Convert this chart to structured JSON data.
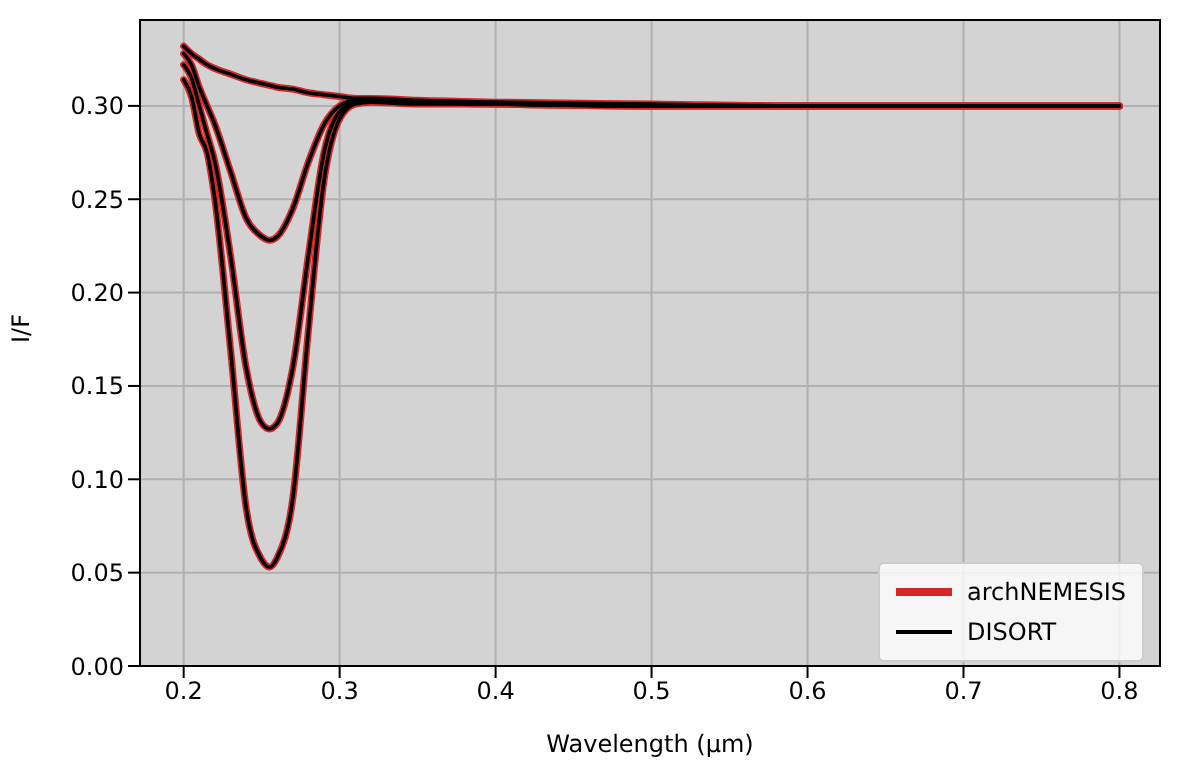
{
  "chart_data": {
    "type": "line",
    "xlabel": "Wavelength (μm)",
    "ylabel": "I/F",
    "x": [
      0.2,
      0.205,
      0.21,
      0.215,
      0.22,
      0.23,
      0.24,
      0.25,
      0.255,
      0.26,
      0.27,
      0.28,
      0.29,
      0.3,
      0.31,
      0.32,
      0.35,
      0.4,
      0.5,
      0.6,
      0.7,
      0.8
    ],
    "series": [
      {
        "name": "archNEMESIS",
        "color": "#d62728",
        "values": [
          0.332,
          0.328,
          0.325,
          0.322,
          0.32,
          0.317,
          0.314,
          0.312,
          0.311,
          0.31,
          0.309,
          0.307,
          0.306,
          0.305,
          0.304,
          0.304,
          0.303,
          0.302,
          0.301,
          0.3,
          0.3,
          0.3
        ]
      },
      {
        "color": "#d62728",
        "values": [
          0.328,
          0.322,
          0.31,
          0.3,
          0.29,
          0.265,
          0.24,
          0.23,
          0.228,
          0.23,
          0.245,
          0.27,
          0.29,
          0.3,
          0.303,
          0.303,
          0.302,
          0.301,
          0.3,
          0.3,
          0.3,
          0.3
        ]
      },
      {
        "color": "#d62728",
        "values": [
          0.322,
          0.315,
          0.3,
          0.285,
          0.27,
          0.22,
          0.16,
          0.13,
          0.127,
          0.13,
          0.16,
          0.22,
          0.275,
          0.297,
          0.302,
          0.303,
          0.302,
          0.301,
          0.3,
          0.3,
          0.3,
          0.3
        ]
      },
      {
        "color": "#d62728",
        "values": [
          0.314,
          0.305,
          0.285,
          0.275,
          0.25,
          0.17,
          0.085,
          0.057,
          0.053,
          0.058,
          0.09,
          0.18,
          0.26,
          0.293,
          0.301,
          0.302,
          0.301,
          0.301,
          0.3,
          0.3,
          0.3,
          0.3
        ]
      },
      {
        "name": "DISORT",
        "color": "#000000",
        "values": [
          0.332,
          0.328,
          0.325,
          0.322,
          0.32,
          0.317,
          0.314,
          0.312,
          0.311,
          0.31,
          0.309,
          0.307,
          0.306,
          0.305,
          0.304,
          0.304,
          0.303,
          0.302,
          0.301,
          0.3,
          0.3,
          0.3
        ]
      },
      {
        "color": "#000000",
        "values": [
          0.328,
          0.322,
          0.31,
          0.3,
          0.29,
          0.265,
          0.24,
          0.23,
          0.228,
          0.23,
          0.245,
          0.27,
          0.29,
          0.3,
          0.303,
          0.303,
          0.302,
          0.301,
          0.3,
          0.3,
          0.3,
          0.3
        ]
      },
      {
        "color": "#000000",
        "values": [
          0.322,
          0.315,
          0.3,
          0.285,
          0.27,
          0.22,
          0.16,
          0.13,
          0.127,
          0.13,
          0.16,
          0.22,
          0.275,
          0.297,
          0.302,
          0.303,
          0.302,
          0.301,
          0.3,
          0.3,
          0.3,
          0.3
        ]
      },
      {
        "color": "#000000",
        "values": [
          0.314,
          0.305,
          0.285,
          0.275,
          0.25,
          0.17,
          0.085,
          0.057,
          0.053,
          0.058,
          0.09,
          0.18,
          0.26,
          0.293,
          0.301,
          0.302,
          0.301,
          0.301,
          0.3,
          0.3,
          0.3,
          0.3
        ]
      }
    ],
    "xlim": [
      0.172,
      0.826
    ],
    "xticks": [
      0.2,
      0.3,
      0.4,
      0.5,
      0.6,
      0.7,
      0.8
    ],
    "ylim": [
      0,
      0.346
    ],
    "yticks": [
      {
        "value": 0,
        "label": "0.00"
      },
      {
        "value": 0.05,
        "label": "0.05"
      },
      {
        "value": 0.1,
        "label": "0.10"
      },
      {
        "value": 0.15,
        "label": "0.15"
      },
      {
        "value": 0.2,
        "label": "0.20"
      },
      {
        "value": 0.25,
        "label": "0.25"
      },
      {
        "value": 0.3,
        "label": "0.30"
      }
    ],
    "grid": true,
    "legend": "bottom right",
    "marker": "none",
    "line_style": "solid"
  }
}
